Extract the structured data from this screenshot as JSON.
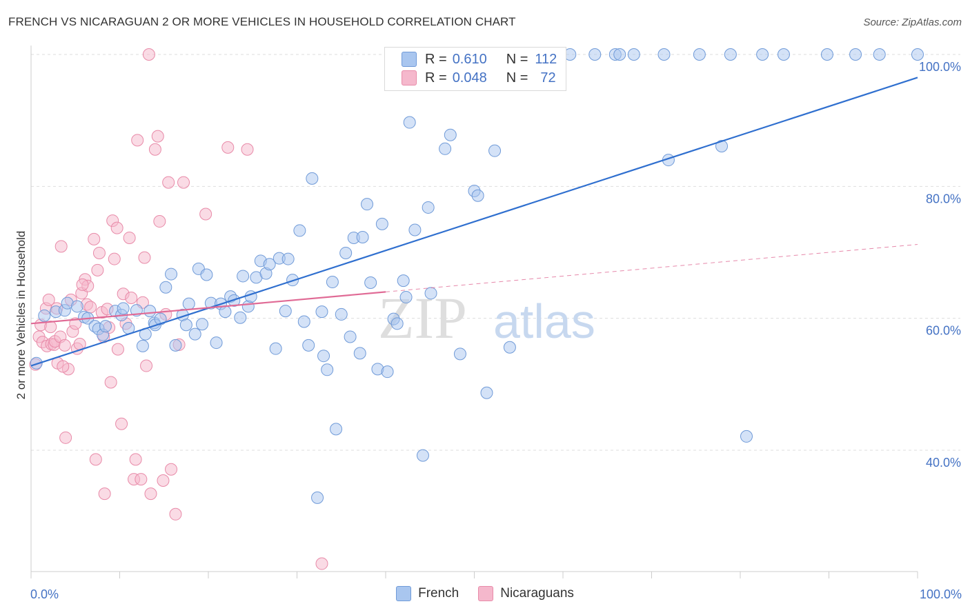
{
  "header": {
    "title": "FRENCH VS NICARAGUAN 2 OR MORE VEHICLES IN HOUSEHOLD CORRELATION CHART",
    "source": "Source: ZipAtlas.com"
  },
  "legend_top": {
    "rows": [
      {
        "r_label": "R =",
        "r_value": "0.610",
        "n_label": "N =",
        "n_value": "112"
      },
      {
        "r_label": "R =",
        "r_value": "0.048",
        "n_label": "N =",
        "n_value": "72"
      }
    ]
  },
  "watermark": {
    "zip": "ZIP",
    "atlas": "atlas"
  },
  "colors": {
    "french_fill": "#a9c6ef",
    "french_stroke": "#6f9ad8",
    "french_line": "#2f6fcf",
    "nicaraguan_fill": "#f5b8cc",
    "nicaraguan_stroke": "#e88aa8",
    "nicaraguan_line": "#e06a95",
    "axis_label": "#4472c4",
    "grid": "#dddddd"
  },
  "chart_data": {
    "type": "scatter",
    "title": "FRENCH VS NICARAGUAN 2 OR MORE VEHICLES IN HOUSEHOLD CORRELATION CHART",
    "xlabel": "",
    "ylabel": "2 or more Vehicles in Household",
    "xlim": [
      0,
      100
    ],
    "ylim": [
      18,
      102
    ],
    "x_tick_labels": [
      "0.0%",
      "100.0%"
    ],
    "y_ticks": [
      40,
      60,
      80,
      100
    ],
    "y_tick_labels": [
      "40.0%",
      "60.0%",
      "80.0%",
      "100.0%"
    ],
    "grid": true,
    "legend_position": "bottom",
    "series": [
      {
        "name": "French",
        "trend": {
          "x": [
            0,
            100
          ],
          "y": [
            52.8,
            96.5
          ],
          "dashed": false
        },
        "points": [
          [
            0.6,
            53.2
          ],
          [
            1.5,
            60.4
          ],
          [
            2.8,
            61.0
          ],
          [
            3.8,
            61.2
          ],
          [
            4.1,
            62.3
          ],
          [
            5.2,
            61.8
          ],
          [
            6.0,
            60.2
          ],
          [
            6.4,
            60.0
          ],
          [
            7.2,
            58.8
          ],
          [
            7.6,
            58.4
          ],
          [
            8.1,
            57.5
          ],
          [
            8.4,
            58.8
          ],
          [
            9.5,
            61.1
          ],
          [
            10.2,
            60.5
          ],
          [
            10.4,
            61.5
          ],
          [
            11.0,
            58.5
          ],
          [
            11.9,
            61.2
          ],
          [
            12.6,
            55.8
          ],
          [
            12.9,
            57.6
          ],
          [
            13.4,
            61.1
          ],
          [
            13.9,
            59.3
          ],
          [
            14.0,
            59.0
          ],
          [
            14.6,
            59.9
          ],
          [
            15.2,
            64.7
          ],
          [
            15.8,
            66.7
          ],
          [
            16.3,
            55.9
          ],
          [
            17.1,
            60.5
          ],
          [
            17.5,
            59.0
          ],
          [
            17.8,
            62.2
          ],
          [
            18.5,
            57.6
          ],
          [
            18.9,
            67.5
          ],
          [
            19.3,
            59.1
          ],
          [
            19.8,
            66.6
          ],
          [
            20.3,
            62.3
          ],
          [
            20.9,
            56.3
          ],
          [
            21.4,
            62.2
          ],
          [
            21.9,
            61.0
          ],
          [
            22.5,
            63.3
          ],
          [
            22.9,
            62.7
          ],
          [
            23.6,
            60.1
          ],
          [
            23.9,
            66.4
          ],
          [
            24.5,
            61.8
          ],
          [
            24.8,
            63.3
          ],
          [
            25.4,
            66.2
          ],
          [
            25.9,
            68.7
          ],
          [
            26.5,
            66.8
          ],
          [
            26.9,
            68.2
          ],
          [
            27.6,
            55.4
          ],
          [
            28.0,
            69.1
          ],
          [
            28.7,
            61.1
          ],
          [
            29.0,
            69.0
          ],
          [
            29.5,
            65.8
          ],
          [
            30.3,
            73.3
          ],
          [
            30.8,
            59.5
          ],
          [
            31.3,
            55.9
          ],
          [
            31.7,
            81.2
          ],
          [
            32.3,
            32.8
          ],
          [
            32.8,
            61.0
          ],
          [
            33.0,
            54.3
          ],
          [
            33.4,
            52.2
          ],
          [
            34.0,
            65.5
          ],
          [
            34.4,
            43.2
          ],
          [
            35.0,
            60.6
          ],
          [
            35.5,
            69.9
          ],
          [
            36.0,
            57.2
          ],
          [
            36.4,
            72.2
          ],
          [
            37.1,
            54.7
          ],
          [
            37.4,
            72.3
          ],
          [
            37.9,
            77.3
          ],
          [
            38.3,
            65.4
          ],
          [
            39.1,
            52.3
          ],
          [
            39.6,
            74.3
          ],
          [
            40.2,
            51.9
          ],
          [
            40.9,
            59.9
          ],
          [
            41.3,
            59.2
          ],
          [
            42.0,
            65.7
          ],
          [
            42.3,
            63.2
          ],
          [
            42.7,
            89.7
          ],
          [
            43.3,
            73.4
          ],
          [
            44.2,
            39.2
          ],
          [
            44.8,
            76.8
          ],
          [
            45.1,
            63.8
          ],
          [
            46.7,
            85.7
          ],
          [
            47.3,
            87.8
          ],
          [
            48.4,
            54.6
          ],
          [
            50.0,
            79.3
          ],
          [
            50.4,
            78.6
          ],
          [
            51.4,
            48.7
          ],
          [
            52.3,
            85.4
          ],
          [
            54.0,
            55.6
          ],
          [
            56.3,
            100.0
          ],
          [
            57.1,
            100.0
          ],
          [
            57.6,
            100.0
          ],
          [
            59.5,
            100.0
          ],
          [
            60.8,
            100.0
          ],
          [
            63.6,
            100.0
          ],
          [
            65.9,
            100.0
          ],
          [
            66.4,
            100.0
          ],
          [
            68.0,
            100.0
          ],
          [
            71.4,
            100.0
          ],
          [
            75.4,
            100.0
          ],
          [
            84.9,
            100.0
          ],
          [
            89.8,
            100.0
          ],
          [
            93.0,
            100.0
          ],
          [
            95.7,
            100.0
          ],
          [
            100.0,
            100.0
          ],
          [
            80.7,
            42.1
          ],
          [
            77.9,
            86.1
          ],
          [
            71.9,
            84.0
          ],
          [
            82.5,
            100.0
          ],
          [
            54.5,
            100.0
          ],
          [
            78.9,
            100.0
          ]
        ]
      },
      {
        "name": "Nicaraguans",
        "trend": {
          "x": [
            0,
            40
          ],
          "y": [
            59.2,
            64.0
          ],
          "dashed": false
        },
        "trend_extension": {
          "x": [
            40,
            100
          ],
          "y": [
            64.0,
            71.2
          ],
          "dashed": true
        },
        "points": [
          [
            0.5,
            53.0
          ],
          [
            0.9,
            57.2
          ],
          [
            1.1,
            59.0
          ],
          [
            1.3,
            56.4
          ],
          [
            1.7,
            61.5
          ],
          [
            1.8,
            55.8
          ],
          [
            2.0,
            62.8
          ],
          [
            2.2,
            58.7
          ],
          [
            2.3,
            56.1
          ],
          [
            2.6,
            56.0
          ],
          [
            2.7,
            56.5
          ],
          [
            2.9,
            61.5
          ],
          [
            3.0,
            53.2
          ],
          [
            3.3,
            57.2
          ],
          [
            3.4,
            70.9
          ],
          [
            3.8,
            55.9
          ],
          [
            3.9,
            41.9
          ],
          [
            4.2,
            52.3
          ],
          [
            4.5,
            62.8
          ],
          [
            4.7,
            58.0
          ],
          [
            5.0,
            59.2
          ],
          [
            5.2,
            55.4
          ],
          [
            5.5,
            56.1
          ],
          [
            5.7,
            63.8
          ],
          [
            6.1,
            65.9
          ],
          [
            6.3,
            62.1
          ],
          [
            6.7,
            61.7
          ],
          [
            7.1,
            72.0
          ],
          [
            7.3,
            38.6
          ],
          [
            7.5,
            67.3
          ],
          [
            7.7,
            69.9
          ],
          [
            8.0,
            60.9
          ],
          [
            8.2,
            57.2
          ],
          [
            8.3,
            33.4
          ],
          [
            8.6,
            61.4
          ],
          [
            9.0,
            50.3
          ],
          [
            9.2,
            74.8
          ],
          [
            9.4,
            69.0
          ],
          [
            9.7,
            73.7
          ],
          [
            9.8,
            55.3
          ],
          [
            10.2,
            44.0
          ],
          [
            10.4,
            63.7
          ],
          [
            10.7,
            59.2
          ],
          [
            11.1,
            72.2
          ],
          [
            11.3,
            63.1
          ],
          [
            11.6,
            35.6
          ],
          [
            11.8,
            38.6
          ],
          [
            12.0,
            87.0
          ],
          [
            12.4,
            35.6
          ],
          [
            12.8,
            69.2
          ],
          [
            13.0,
            52.8
          ],
          [
            13.3,
            100.0
          ],
          [
            13.5,
            33.4
          ],
          [
            14.0,
            85.6
          ],
          [
            14.3,
            87.6
          ],
          [
            14.5,
            74.7
          ],
          [
            14.9,
            35.4
          ],
          [
            15.2,
            60.6
          ],
          [
            15.5,
            80.6
          ],
          [
            15.8,
            37.1
          ],
          [
            16.3,
            30.3
          ],
          [
            16.7,
            56.0
          ],
          [
            17.2,
            80.6
          ],
          [
            19.7,
            75.8
          ],
          [
            22.2,
            85.9
          ],
          [
            24.4,
            85.6
          ],
          [
            32.8,
            22.8
          ],
          [
            6.4,
            64.9
          ],
          [
            5.8,
            65.1
          ],
          [
            12.6,
            62.4
          ],
          [
            8.8,
            58.6
          ],
          [
            3.6,
            52.7
          ]
        ]
      }
    ]
  },
  "bottom_legend": {
    "items": [
      "French",
      "Nicaraguans"
    ]
  }
}
